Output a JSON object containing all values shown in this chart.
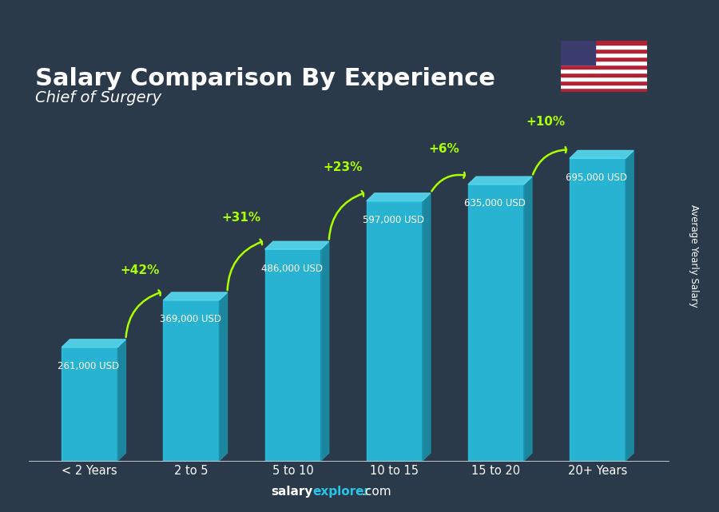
{
  "title": "Salary Comparison By Experience",
  "subtitle": "Chief of Surgery",
  "categories": [
    "< 2 Years",
    "2 to 5",
    "5 to 10",
    "10 to 15",
    "15 to 20",
    "20+ Years"
  ],
  "values": [
    261000,
    369000,
    486000,
    597000,
    635000,
    695000
  ],
  "salary_labels": [
    "261,000 USD",
    "369,000 USD",
    "486,000 USD",
    "597,000 USD",
    "635,000 USD",
    "695,000 USD"
  ],
  "pct_labels": [
    "+42%",
    "+31%",
    "+23%",
    "+6%",
    "+10%"
  ],
  "bar_color_face": "#29c5e6",
  "bar_color_dark": "#1a8fa8",
  "bar_color_top": "#55d8f0",
  "pct_color": "#aaff00",
  "ylabel_text": "Average Yearly Salary",
  "bg_color": "#2a3a4a",
  "ylim": [
    0,
    800000
  ]
}
